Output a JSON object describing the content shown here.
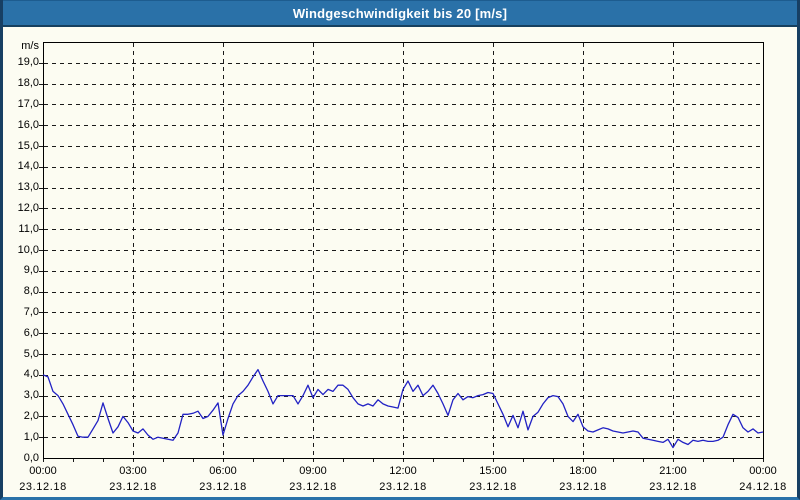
{
  "window": {
    "title": "Windgeschwindigkeit bis 20 [m/s]"
  },
  "colors": {
    "titlebar_bg": "#2a71a8",
    "titlebar_text": "#ffffff",
    "window_border_side": "#173f63",
    "window_border_bottom": "#2a72a9",
    "content_bg": "#fcfcf2",
    "plot_border": "#000000",
    "grid": "#1a1a1a",
    "line": "#2222c4",
    "label": "#000000"
  },
  "chart_data": {
    "type": "line",
    "title": "Windgeschwindigkeit bis 20 [m/s]",
    "ylabel_unit": "m/s",
    "ylim": [
      0,
      20
    ],
    "ygrid_step": 1,
    "ytick_labels": [
      "0,0",
      "1,0",
      "2,0",
      "3,0",
      "4,0",
      "5,0",
      "6,0",
      "7,0",
      "8,0",
      "9,0",
      "10,0",
      "11,0",
      "12,0",
      "13,0",
      "14,0",
      "15,0",
      "16,0",
      "17,0",
      "18,0",
      "19,0"
    ],
    "xlim_hours": [
      0,
      24
    ],
    "x_major_step_hours": 3,
    "x_minor_step_hours": 1,
    "grid": "dashed",
    "legend": "none",
    "xticks": [
      {
        "hour": 0,
        "time": "00:00",
        "date": "23.12.18"
      },
      {
        "hour": 3,
        "time": "03:00",
        "date": "23.12.18"
      },
      {
        "hour": 6,
        "time": "06:00",
        "date": "23.12.18"
      },
      {
        "hour": 9,
        "time": "09:00",
        "date": "23.12.18"
      },
      {
        "hour": 12,
        "time": "12:00",
        "date": "23.12.18"
      },
      {
        "hour": 15,
        "time": "15:00",
        "date": "23.12.18"
      },
      {
        "hour": 18,
        "time": "18:00",
        "date": "23.12.18"
      },
      {
        "hour": 21,
        "time": "21:00",
        "date": "23.12.18"
      },
      {
        "hour": 24,
        "time": "00:00",
        "date": "24.12.18"
      }
    ],
    "series": [
      {
        "name": "Windgeschwindigkeit",
        "unit": "m/s",
        "color": "#2222c4",
        "start_hour": 0,
        "interval_minutes": 10,
        "values": [
          4.0,
          3.9,
          3.2,
          3.0,
          2.6,
          2.1,
          1.6,
          1.05,
          1.0,
          1.0,
          1.4,
          1.8,
          2.65,
          1.9,
          1.2,
          1.5,
          2.0,
          1.7,
          1.3,
          1.2,
          1.4,
          1.1,
          0.9,
          1.0,
          0.95,
          0.9,
          0.85,
          1.2,
          2.1,
          2.1,
          2.15,
          2.25,
          1.9,
          2.0,
          2.3,
          2.65,
          1.1,
          1.9,
          2.6,
          3.0,
          3.2,
          3.5,
          3.9,
          4.25,
          3.7,
          3.2,
          2.6,
          3.0,
          3.0,
          3.0,
          3.0,
          2.6,
          3.0,
          3.5,
          2.9,
          3.3,
          3.05,
          3.3,
          3.2,
          3.5,
          3.5,
          3.3,
          2.9,
          2.6,
          2.5,
          2.6,
          2.5,
          2.8,
          2.6,
          2.5,
          2.45,
          2.4,
          3.3,
          3.7,
          3.2,
          3.5,
          3.0,
          3.2,
          3.5,
          3.1,
          2.6,
          2.05,
          2.8,
          3.1,
          2.8,
          2.95,
          2.9,
          3.0,
          3.05,
          3.15,
          3.1,
          2.6,
          2.1,
          1.5,
          2.05,
          1.45,
          2.25,
          1.35,
          2.0,
          2.2,
          2.6,
          2.9,
          3.0,
          2.95,
          2.6,
          2.0,
          1.75,
          2.1,
          1.5,
          1.3,
          1.25,
          1.35,
          1.45,
          1.4,
          1.3,
          1.25,
          1.2,
          1.25,
          1.3,
          1.25,
          0.95,
          0.9,
          0.85,
          0.8,
          0.75,
          0.9,
          0.5,
          0.9,
          0.75,
          0.65,
          0.85,
          0.8,
          0.85,
          0.8,
          0.8,
          0.85,
          1.0,
          1.6,
          2.1,
          1.95,
          1.45,
          1.25,
          1.4,
          1.2,
          1.25
        ]
      }
    ]
  }
}
